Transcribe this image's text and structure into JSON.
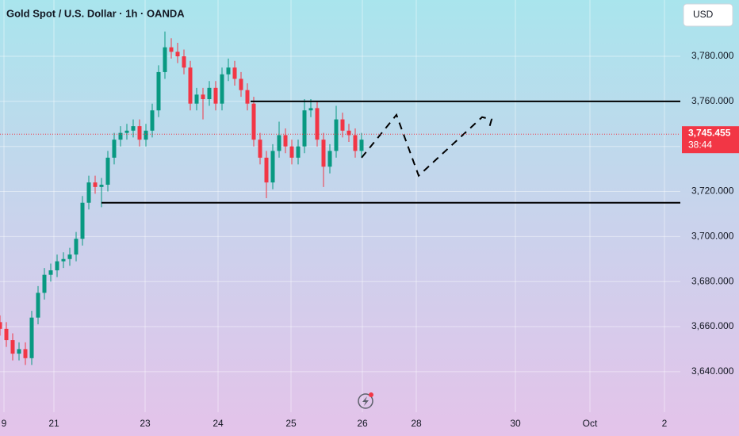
{
  "chart_data": {
    "type": "candlestick",
    "title": "Gold Spot / U.S. Dollar · 1h · OANDA",
    "currency_button": "USD",
    "x": [
      0,
      2,
      4,
      6,
      8,
      10,
      12,
      14,
      16,
      18,
      20,
      22,
      24,
      26,
      28,
      30,
      32,
      34,
      36,
      38,
      40,
      42,
      44,
      46,
      48,
      50,
      52,
      54,
      56,
      58,
      60,
      62,
      64,
      66,
      68,
      70,
      72,
      74,
      76,
      78,
      80,
      82,
      84,
      86,
      88,
      90,
      92,
      94,
      96,
      98,
      100,
      102,
      104,
      106,
      108,
      110,
      112,
      114
    ],
    "series": [
      {
        "up_color": "#089981",
        "down_color": "#f23645",
        "open": [
          3662,
          3659,
          3654,
          3648,
          3650,
          3646,
          3664,
          3675,
          3683,
          3685,
          3689,
          3690,
          3692,
          3699,
          3715,
          3724,
          3722,
          3723,
          3735,
          3743,
          3746,
          3747,
          3749,
          3743,
          3747,
          3756,
          3773,
          3784,
          3782,
          3780,
          3775,
          3759,
          3763,
          3761,
          3766,
          3759,
          3772,
          3775,
          3770,
          3765,
          3759,
          3743,
          3735,
          3724,
          3738,
          3745,
          3740,
          3735,
          3740,
          3756,
          3757,
          3743,
          3731,
          3738,
          3752,
          3747,
          3745,
          3738
        ],
        "high": [
          3665,
          3662,
          3657,
          3653,
          3653,
          3667,
          3678,
          3686,
          3688,
          3692,
          3693,
          3695,
          3702,
          3718,
          3727,
          3727,
          3726,
          3738,
          3746,
          3749,
          3750,
          3752,
          3752,
          3750,
          3759,
          3776,
          3791,
          3788,
          3786,
          3783,
          3778,
          3766,
          3766,
          3769,
          3769,
          3775,
          3779,
          3778,
          3773,
          3768,
          3762,
          3746,
          3738,
          3741,
          3751,
          3748,
          3743,
          3743,
          3761,
          3761,
          3760,
          3746,
          3741,
          3758,
          3755,
          3750,
          3748,
          3746
        ],
        "low": [
          3656,
          3651,
          3645,
          3645,
          3643,
          3643,
          3661,
          3672,
          3680,
          3682,
          3686,
          3687,
          3689,
          3696,
          3712,
          3719,
          3713,
          3720,
          3732,
          3740,
          3743,
          3744,
          3740,
          3740,
          3744,
          3753,
          3770,
          3779,
          3777,
          3772,
          3756,
          3756,
          3752,
          3758,
          3756,
          3756,
          3769,
          3767,
          3762,
          3756,
          3740,
          3732,
          3717,
          3721,
          3735,
          3737,
          3732,
          3732,
          3737,
          3753,
          3740,
          3722,
          3728,
          3735,
          3744,
          3742,
          3735,
          3735
        ],
        "close": [
          3659,
          3654,
          3648,
          3650,
          3646,
          3664,
          3675,
          3683,
          3685,
          3689,
          3690,
          3692,
          3699,
          3715,
          3724,
          3722,
          3723,
          3735,
          3743,
          3746,
          3747,
          3749,
          3743,
          3747,
          3756,
          3773,
          3784,
          3782,
          3780,
          3775,
          3759,
          3763,
          3761,
          3766,
          3759,
          3772,
          3775,
          3770,
          3765,
          3759,
          3743,
          3735,
          3724,
          3738,
          3745,
          3740,
          3735,
          3740,
          3756,
          3757,
          3743,
          3731,
          3738,
          3752,
          3747,
          3745,
          3738,
          3743
        ]
      }
    ],
    "xlim": [
      0,
      214.5
    ],
    "ylim": [
      3622,
      3805
    ],
    "xticks": [
      {
        "value": 1.25,
        "label": "9"
      },
      {
        "value": 17,
        "label": "21"
      },
      {
        "value": 45.75,
        "label": "23"
      },
      {
        "value": 68.75,
        "label": "24"
      },
      {
        "value": 91.75,
        "label": "25"
      },
      {
        "value": 114.25,
        "label": "26"
      },
      {
        "value": 131.25,
        "label": "28"
      },
      {
        "value": 162.5,
        "label": "30"
      },
      {
        "value": 186,
        "label": "Oct"
      },
      {
        "value": 209.5,
        "label": "2"
      }
    ],
    "yticks": [
      {
        "value": 3640,
        "label": "3,640.000"
      },
      {
        "value": 3660,
        "label": "3,660.000"
      },
      {
        "value": 3680,
        "label": "3,680.000"
      },
      {
        "value": 3700,
        "label": "3,700.000"
      },
      {
        "value": 3720,
        "label": "3,720.000"
      },
      {
        "value": 3740,
        "label": "3,740.000"
      },
      {
        "value": 3760,
        "label": "3,760.000"
      },
      {
        "value": 3780,
        "label": "3,780.000"
      }
    ],
    "grid": true,
    "last_price": {
      "value": 3745.455,
      "label": "3,745.455",
      "countdown": "38:44",
      "color": "#f23645"
    },
    "levels": [
      {
        "value": 3760,
        "from": 79
      },
      {
        "value": 3715,
        "from": 32
      }
    ],
    "projection": {
      "x": [
        114,
        125,
        132,
        152,
        155,
        154
      ],
      "y": [
        3735,
        3754,
        3727,
        3753,
        3752,
        3747
      ]
    }
  }
}
